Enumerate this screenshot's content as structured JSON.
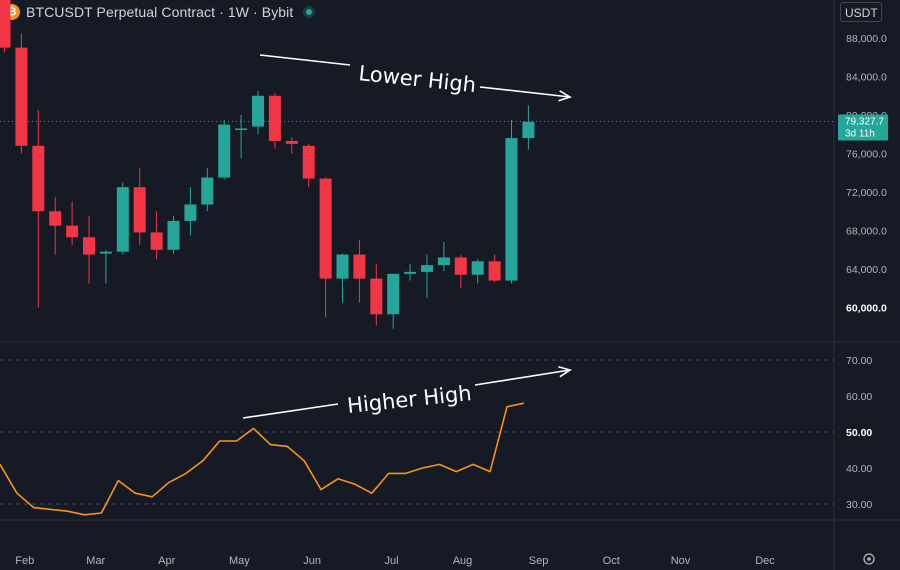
{
  "header": {
    "title": "BTCUSDT Perpetual Contract · 1W · Bybit",
    "currency": "USDT",
    "logo_icon": "bitcoin-icon",
    "status_icon": "live-dot-icon"
  },
  "colors": {
    "background": "#161a25",
    "bull": "#26a69a",
    "bear": "#f23645",
    "rsi_line": "#f7931a",
    "text": "#d1d4dc",
    "grid": "#2a2e39"
  },
  "price_label": {
    "price": "79,327.7",
    "countdown": "3d 11h"
  },
  "annotations": {
    "top": "Lower High",
    "bottom": "Higher High"
  },
  "chart_data": [
    {
      "type": "candlestick",
      "y_axis_ticks": [
        "88,000.0",
        "84,000.0",
        "80,000.0",
        "76,000.0",
        "72,000.0",
        "68,000.0",
        "64,000.0",
        "60,000.0"
      ],
      "ylim": [
        57000,
        90000
      ],
      "last_price": 79327.7,
      "candles": [
        {
          "o": 95000,
          "h": 98000,
          "l": 86500,
          "c": 87000
        },
        {
          "o": 87000,
          "h": 88500,
          "l": 76000,
          "c": 76800
        },
        {
          "o": 76800,
          "h": 80500,
          "l": 60000,
          "c": 70000
        },
        {
          "o": 70000,
          "h": 71500,
          "l": 65500,
          "c": 68500
        },
        {
          "o": 68500,
          "h": 71000,
          "l": 66500,
          "c": 67300
        },
        {
          "o": 67300,
          "h": 69500,
          "l": 62500,
          "c": 65500
        },
        {
          "o": 65600,
          "h": 66000,
          "l": 62500,
          "c": 65800
        },
        {
          "o": 65800,
          "h": 73000,
          "l": 65500,
          "c": 72500
        },
        {
          "o": 72500,
          "h": 74500,
          "l": 66500,
          "c": 67800
        },
        {
          "o": 67800,
          "h": 70000,
          "l": 65000,
          "c": 66000
        },
        {
          "o": 66000,
          "h": 69500,
          "l": 65600,
          "c": 69000
        },
        {
          "o": 69000,
          "h": 72500,
          "l": 67500,
          "c": 70700
        },
        {
          "o": 70700,
          "h": 74500,
          "l": 70000,
          "c": 73500
        },
        {
          "o": 73500,
          "h": 79500,
          "l": 73300,
          "c": 79000
        },
        {
          "o": 78600,
          "h": 80000,
          "l": 75500,
          "c": 78600
        },
        {
          "o": 78800,
          "h": 82500,
          "l": 78000,
          "c": 82000
        },
        {
          "o": 82000,
          "h": 82300,
          "l": 76500,
          "c": 77300
        },
        {
          "o": 77300,
          "h": 77700,
          "l": 76000,
          "c": 77000
        },
        {
          "o": 76800,
          "h": 77000,
          "l": 72500,
          "c": 73400
        },
        {
          "o": 73400,
          "h": 73500,
          "l": 59000,
          "c": 63000
        },
        {
          "o": 63000,
          "h": 65600,
          "l": 60500,
          "c": 65500
        },
        {
          "o": 65500,
          "h": 67000,
          "l": 60500,
          "c": 63000
        },
        {
          "o": 63000,
          "h": 64500,
          "l": 58100,
          "c": 59300
        },
        {
          "o": 59300,
          "h": 63500,
          "l": 57800,
          "c": 63500
        },
        {
          "o": 63500,
          "h": 64500,
          "l": 62800,
          "c": 63700
        },
        {
          "o": 63700,
          "h": 65500,
          "l": 61000,
          "c": 64400
        },
        {
          "o": 64400,
          "h": 66800,
          "l": 63800,
          "c": 65200
        },
        {
          "o": 65200,
          "h": 65500,
          "l": 62000,
          "c": 63400
        },
        {
          "o": 63400,
          "h": 65000,
          "l": 62500,
          "c": 64800
        },
        {
          "o": 64800,
          "h": 65500,
          "l": 62600,
          "c": 62800
        },
        {
          "o": 62800,
          "h": 79500,
          "l": 62500,
          "c": 77600
        },
        {
          "o": 77600,
          "h": 81000,
          "l": 76400,
          "c": 79300
        }
      ]
    },
    {
      "type": "line",
      "y_axis_ticks": [
        "70.00",
        "60.00",
        "50.00",
        "40.00",
        "30.00"
      ],
      "ylim": [
        24,
        75
      ],
      "dashed_levels": [
        70,
        50,
        30
      ],
      "values": [
        41,
        33,
        29,
        28.5,
        28,
        27,
        27.5,
        36.5,
        33,
        32,
        36,
        38.5,
        42,
        47.5,
        47.5,
        51,
        46.5,
        46,
        42,
        34,
        37,
        35.5,
        33,
        38.5,
        38.5,
        40,
        41,
        39,
        41,
        39,
        57,
        58
      ]
    }
  ],
  "x_axis": {
    "labels": [
      {
        "text": "Feb",
        "week": 1.2
      },
      {
        "text": "Mar",
        "week": 5.4
      },
      {
        "text": "Apr",
        "week": 9.6
      },
      {
        "text": "May",
        "week": 13.9
      },
      {
        "text": "Jun",
        "week": 18.2
      },
      {
        "text": "Jul",
        "week": 22.9
      },
      {
        "text": "Aug",
        "week": 27.1
      },
      {
        "text": "Sep",
        "week": 31.6
      },
      {
        "text": "Oct",
        "week": 35.9
      },
      {
        "text": "Nov",
        "week": 40.0
      },
      {
        "text": "Dec",
        "week": 45.0
      }
    ]
  }
}
